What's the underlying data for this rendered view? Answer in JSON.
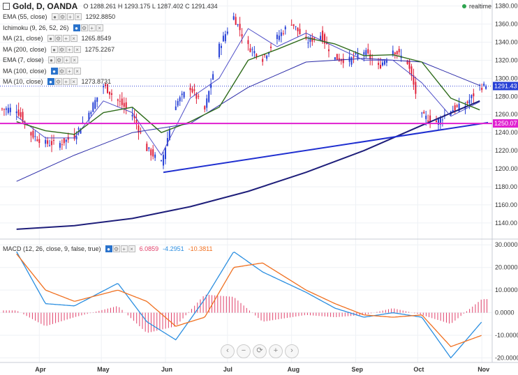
{
  "header": {
    "symbol": "Gold, D, OANDA",
    "ohlc": "O 1288.261 H 1293.175 L 1287.402 C 1291.434",
    "realtime": "realtime"
  },
  "legend": [
    {
      "name": "EMA (55, close)",
      "value": "1292.8850"
    },
    {
      "name": "Ichimoku (9, 26, 52, 26)",
      "value": ""
    },
    {
      "name": "MA (21, close)",
      "value": "1265.8549"
    },
    {
      "name": "MA (200, close)",
      "value": "1275.2267"
    },
    {
      "name": "EMA (7, close)",
      "value": ""
    },
    {
      "name": "MA (100, close)",
      "value": ""
    },
    {
      "name": "MA (10, close)",
      "value": "1273.8731"
    }
  ],
  "macd_legend": {
    "name": "MACD (12, 26, close, 9, false, true)",
    "hist": "6.0859",
    "macd": "-4.2951",
    "signal": "-10.3811"
  },
  "colors": {
    "up": "#2741d6",
    "down": "#e0203a",
    "ma21": "#2e6b1a",
    "ma200": "#1e1e7a",
    "ma10": "#5050c8",
    "ema55": "#2b2ba8",
    "horizontal": "#e020d0",
    "trendline": "#1f2fd0",
    "macd": "#2a8ee0",
    "signal": "#f07020",
    "hist": "#e0406a"
  },
  "chart_data": {
    "type": "candlestick",
    "symbol": "Gold",
    "timeframe": "D",
    "price_axis": {
      "ylim": [
        1126,
        1382
      ],
      "ticks": [
        1140,
        1160,
        1180,
        1200,
        1220,
        1240,
        1260,
        1280,
        1300,
        1320,
        1340,
        1360,
        1380
      ],
      "current_price_label": "1291.43",
      "horizontal_level_label": "1250.07"
    },
    "x_axis": {
      "months": [
        "Apr",
        "May",
        "Jun",
        "Jul",
        "Aug",
        "Sep",
        "Oct",
        "Nov"
      ]
    },
    "horizontal_line": 1250.07,
    "trendline": {
      "from": {
        "date": "2016-05-31",
        "price": 1196
      },
      "to": {
        "date": "2016-11-04",
        "price": 1251
      }
    },
    "price_path": [
      {
        "date": "2016-03-21",
        "close": 1266
      },
      {
        "date": "2016-03-28",
        "close": 1238
      },
      {
        "date": "2016-04-04",
        "close": 1228
      },
      {
        "date": "2016-04-11",
        "close": 1228
      },
      {
        "date": "2016-04-18",
        "close": 1236
      },
      {
        "date": "2016-04-25",
        "close": 1262
      },
      {
        "date": "2016-05-02",
        "close": 1292
      },
      {
        "date": "2016-05-09",
        "close": 1275
      },
      {
        "date": "2016-05-16",
        "close": 1260
      },
      {
        "date": "2016-05-23",
        "close": 1222
      },
      {
        "date": "2016-05-30",
        "close": 1206
      },
      {
        "date": "2016-06-06",
        "close": 1272
      },
      {
        "date": "2016-06-13",
        "close": 1290
      },
      {
        "date": "2016-06-20",
        "close": 1265
      },
      {
        "date": "2016-06-27",
        "close": 1335
      },
      {
        "date": "2016-07-04",
        "close": 1368
      },
      {
        "date": "2016-07-11",
        "close": 1335
      },
      {
        "date": "2016-07-18",
        "close": 1322
      },
      {
        "date": "2016-07-25",
        "close": 1345
      },
      {
        "date": "2016-08-01",
        "close": 1362
      },
      {
        "date": "2016-08-08",
        "close": 1340
      },
      {
        "date": "2016-08-15",
        "close": 1348
      },
      {
        "date": "2016-08-22",
        "close": 1322
      },
      {
        "date": "2016-08-29",
        "close": 1320
      },
      {
        "date": "2016-09-05",
        "close": 1330
      },
      {
        "date": "2016-09-12",
        "close": 1312
      },
      {
        "date": "2016-09-19",
        "close": 1332
      },
      {
        "date": "2016-09-26",
        "close": 1318
      },
      {
        "date": "2016-10-03",
        "close": 1258
      },
      {
        "date": "2016-10-10",
        "close": 1252
      },
      {
        "date": "2016-10-17",
        "close": 1265
      },
      {
        "date": "2016-10-24",
        "close": 1270
      },
      {
        "date": "2016-10-31",
        "close": 1291
      }
    ],
    "ma21": [
      {
        "date": "2016-03-21",
        "y": 1252
      },
      {
        "date": "2016-04-04",
        "y": 1242
      },
      {
        "date": "2016-04-18",
        "y": 1238
      },
      {
        "date": "2016-05-02",
        "y": 1262
      },
      {
        "date": "2016-05-16",
        "y": 1268
      },
      {
        "date": "2016-05-30",
        "y": 1240
      },
      {
        "date": "2016-06-13",
        "y": 1252
      },
      {
        "date": "2016-06-27",
        "y": 1268
      },
      {
        "date": "2016-07-11",
        "y": 1320
      },
      {
        "date": "2016-07-25",
        "y": 1332
      },
      {
        "date": "2016-08-08",
        "y": 1345
      },
      {
        "date": "2016-08-22",
        "y": 1338
      },
      {
        "date": "2016-09-05",
        "y": 1325
      },
      {
        "date": "2016-09-19",
        "y": 1326
      },
      {
        "date": "2016-10-03",
        "y": 1318
      },
      {
        "date": "2016-10-17",
        "y": 1278
      },
      {
        "date": "2016-10-31",
        "y": 1265
      }
    ],
    "ma200": [
      {
        "date": "2016-03-21",
        "y": 1133
      },
      {
        "date": "2016-04-18",
        "y": 1137
      },
      {
        "date": "2016-05-16",
        "y": 1145
      },
      {
        "date": "2016-06-13",
        "y": 1158
      },
      {
        "date": "2016-07-11",
        "y": 1175
      },
      {
        "date": "2016-08-08",
        "y": 1196
      },
      {
        "date": "2016-09-05",
        "y": 1220
      },
      {
        "date": "2016-10-03",
        "y": 1248
      },
      {
        "date": "2016-10-31",
        "y": 1275
      }
    ],
    "ema55": [
      {
        "date": "2016-03-21",
        "y": 1186
      },
      {
        "date": "2016-04-18",
        "y": 1215
      },
      {
        "date": "2016-05-16",
        "y": 1240
      },
      {
        "date": "2016-06-13",
        "y": 1250
      },
      {
        "date": "2016-07-11",
        "y": 1290
      },
      {
        "date": "2016-08-08",
        "y": 1318
      },
      {
        "date": "2016-09-05",
        "y": 1322
      },
      {
        "date": "2016-10-03",
        "y": 1318
      },
      {
        "date": "2016-10-31",
        "y": 1292
      }
    ],
    "ma10": [
      {
        "date": "2016-03-21",
        "y": 1258
      },
      {
        "date": "2016-04-04",
        "y": 1234
      },
      {
        "date": "2016-04-18",
        "y": 1234
      },
      {
        "date": "2016-05-02",
        "y": 1275
      },
      {
        "date": "2016-05-16",
        "y": 1262
      },
      {
        "date": "2016-05-30",
        "y": 1215
      },
      {
        "date": "2016-06-13",
        "y": 1278
      },
      {
        "date": "2016-06-27",
        "y": 1300
      },
      {
        "date": "2016-07-11",
        "y": 1355
      },
      {
        "date": "2016-07-25",
        "y": 1335
      },
      {
        "date": "2016-08-08",
        "y": 1350
      },
      {
        "date": "2016-08-22",
        "y": 1335
      },
      {
        "date": "2016-09-05",
        "y": 1320
      },
      {
        "date": "2016-09-19",
        "y": 1320
      },
      {
        "date": "2016-10-03",
        "y": 1295
      },
      {
        "date": "2016-10-17",
        "y": 1258
      },
      {
        "date": "2016-10-31",
        "y": 1274
      }
    ],
    "macd": {
      "ylim": [
        -22,
        31
      ],
      "ticks": [
        30,
        20,
        10,
        0,
        -10,
        -20
      ],
      "tick_labels": [
        "30.0000",
        "20.0000",
        "10.0000",
        "0.0000",
        "-10.0000",
        "-20.0000"
      ],
      "macd_line": [
        {
          "date": "2016-03-21",
          "y": 27
        },
        {
          "date": "2016-04-04",
          "y": 4
        },
        {
          "date": "2016-04-18",
          "y": 3
        },
        {
          "date": "2016-05-09",
          "y": 13
        },
        {
          "date": "2016-05-23",
          "y": -4
        },
        {
          "date": "2016-06-06",
          "y": -12
        },
        {
          "date": "2016-06-20",
          "y": 6
        },
        {
          "date": "2016-07-04",
          "y": 27
        },
        {
          "date": "2016-07-18",
          "y": 18
        },
        {
          "date": "2016-08-08",
          "y": 9
        },
        {
          "date": "2016-08-22",
          "y": 2
        },
        {
          "date": "2016-09-05",
          "y": -2
        },
        {
          "date": "2016-09-19",
          "y": 0
        },
        {
          "date": "2016-10-03",
          "y": -2
        },
        {
          "date": "2016-10-17",
          "y": -20
        },
        {
          "date": "2016-11-01",
          "y": -4
        }
      ],
      "signal_line": [
        {
          "date": "2016-03-21",
          "y": 26
        },
        {
          "date": "2016-04-04",
          "y": 10
        },
        {
          "date": "2016-04-18",
          "y": 5
        },
        {
          "date": "2016-05-09",
          "y": 10
        },
        {
          "date": "2016-05-23",
          "y": 5
        },
        {
          "date": "2016-06-06",
          "y": -6
        },
        {
          "date": "2016-06-20",
          "y": -2
        },
        {
          "date": "2016-07-04",
          "y": 20
        },
        {
          "date": "2016-07-18",
          "y": 22
        },
        {
          "date": "2016-08-08",
          "y": 10
        },
        {
          "date": "2016-08-22",
          "y": 4
        },
        {
          "date": "2016-09-05",
          "y": -1
        },
        {
          "date": "2016-09-19",
          "y": -2
        },
        {
          "date": "2016-10-03",
          "y": -1
        },
        {
          "date": "2016-10-17",
          "y": -15
        },
        {
          "date": "2016-11-01",
          "y": -10
        }
      ]
    }
  }
}
